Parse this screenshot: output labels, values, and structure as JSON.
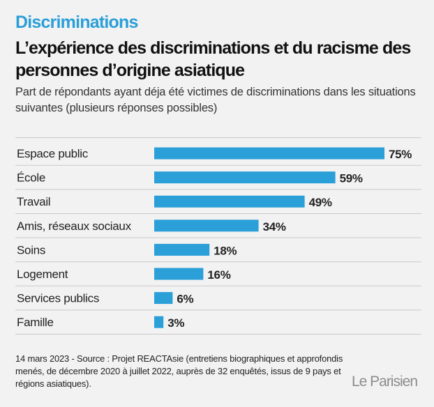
{
  "header": {
    "kicker": "Discriminations",
    "title": "L’expérience des discriminations et du racisme des personnes d’origine asiatique",
    "subtitle": "Part de répondants ayant déja été victimes de discriminations dans les situations suivantes (plusieurs réponses possibles)"
  },
  "chart_data": {
    "type": "bar",
    "orientation": "horizontal",
    "categories": [
      "Espace public",
      "École",
      "Travail",
      "Amis, réseaux sociaux",
      "Soins",
      "Logement",
      "Services publics",
      "Famille"
    ],
    "values": [
      75,
      59,
      49,
      34,
      18,
      16,
      6,
      3
    ],
    "value_labels": [
      "75%",
      "59%",
      "49%",
      "34%",
      "18%",
      "16%",
      "6%",
      "3%"
    ],
    "unit": "%",
    "xlim": [
      0,
      100
    ],
    "grid": false,
    "colors": {
      "bar": "#2a9fd8",
      "row_rule": "#c9c9c9"
    }
  },
  "footer": {
    "source": "14 mars 2023 - Source : Projet REACTAsie (entretiens biographiques et approfondis menés, de décembre 2020 à juillet 2022, auprès de 32 enquêtés, issus de 9 pays et régions asiatiques)."
  },
  "brand": {
    "logo_text": "LeParisien"
  }
}
